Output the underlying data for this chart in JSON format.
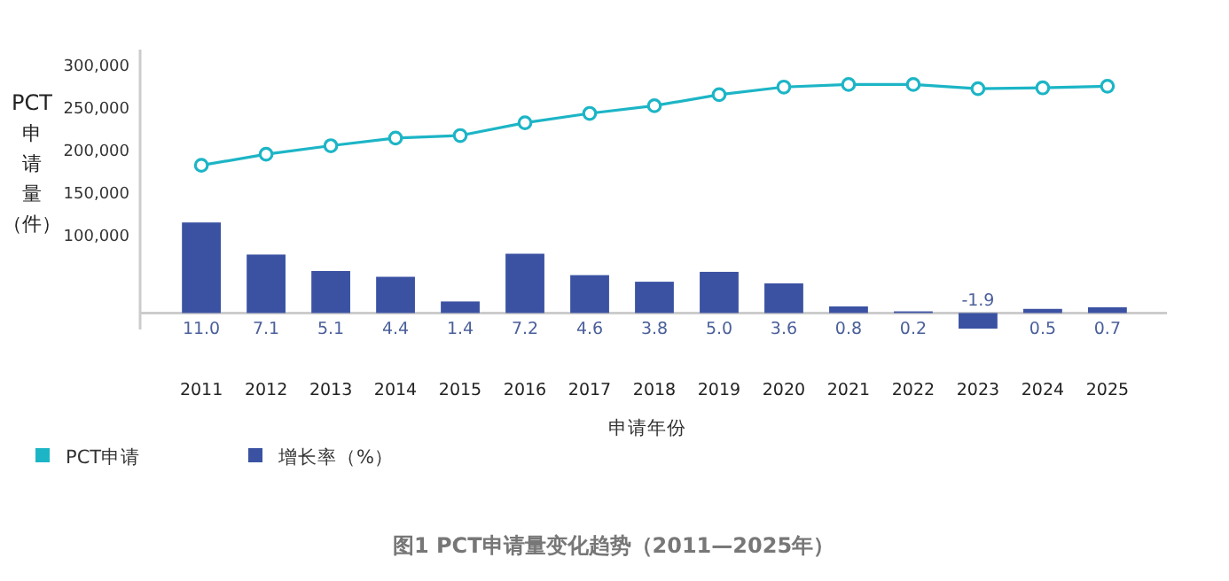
{
  "chart_data": {
    "type": "bar",
    "title": "图1  PCT申请量变化趋势（2011—2025年）",
    "xlabel": "申请年份",
    "ylabel": "PCT申请量（件）",
    "categories": [
      "2011",
      "2012",
      "2013",
      "2014",
      "2015",
      "2016",
      "2017",
      "2018",
      "2019",
      "2020",
      "2021",
      "2022",
      "2023",
      "2024",
      "2025"
    ],
    "series": [
      {
        "name": "PCT申请",
        "type": "line",
        "color": "#1cb5c6",
        "values": [
          182000,
          195000,
          205000,
          214000,
          217000,
          232000,
          243000,
          252000,
          265000,
          274000,
          277000,
          277000,
          272000,
          273000,
          275000
        ]
      },
      {
        "name": "增长率（%）",
        "axis": "y2",
        "color": "#3b52a3",
        "values": [
          11.0,
          7.1,
          5.1,
          4.4,
          1.4,
          7.2,
          4.6,
          3.8,
          5.0,
          3.6,
          0.8,
          0.2,
          -1.9,
          0.5,
          0.7
        ],
        "value_labels": [
          "11.0",
          "7.1",
          "5.1",
          "4.4",
          "1.4",
          "7.2",
          "4.6",
          "3.8",
          "5.0",
          "3.6",
          "0.8",
          "0.2",
          "-1.9",
          "0.5",
          "0.7"
        ]
      }
    ],
    "ylim": [
      -11000,
      318000
    ],
    "yticks": [
      {
        "value": 100000,
        "label": "100,000"
      },
      {
        "value": 150000,
        "label": "150,000"
      },
      {
        "value": 200000,
        "label": "200,000"
      },
      {
        "value": 250000,
        "label": "250,000"
      },
      {
        "value": 300000,
        "label": "300,000"
      }
    ],
    "y2lim": [
      -2,
      32
    ],
    "tick_labels": "xy",
    "marker": "circle",
    "legend": "bottom left",
    "grid": false
  }
}
